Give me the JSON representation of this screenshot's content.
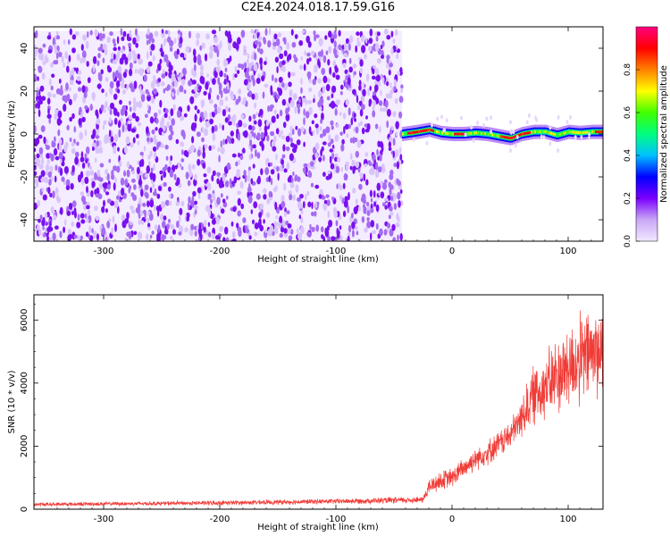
{
  "figure_title": "C2E4.2024.018.17.59.G16",
  "chart_data": [
    {
      "type": "heatmap",
      "title": "C2E4.2024.018.17.59.G16",
      "xlabel": "Height of straight line (km)",
      "ylabel": "Frequency (Hz)",
      "xlim": [
        -360,
        130
      ],
      "ylim": [
        -50,
        50
      ],
      "xticks": [
        -300,
        -200,
        -100,
        0,
        100
      ],
      "yticks": [
        -40,
        -20,
        0,
        20,
        40
      ],
      "colorbar": {
        "label": "Normalized spectral amplitude",
        "range": [
          0,
          1
        ],
        "ticks": [
          "0.0",
          "0.2",
          "0.4",
          "0.6",
          "0.8"
        ],
        "colors": [
          "#f2e8ff",
          "#c9a8f5",
          "#7b00ff",
          "#0000ff",
          "#00c0ff",
          "#00ff80",
          "#40ff00",
          "#ffff00",
          "#ff8000",
          "#ff0000",
          "#ff0080"
        ]
      },
      "regions": [
        {
          "name": "noise",
          "x_range": [
            -360,
            -43
          ],
          "y_range": [
            -50,
            48
          ],
          "amplitude_range": [
            0.0,
            0.15
          ]
        },
        {
          "name": "signal",
          "x_range": [
            -43,
            130
          ],
          "frequency_hz": 0.5,
          "bandwidth_hz": 5,
          "amplitude_range": [
            0.2,
            1.0
          ]
        }
      ],
      "signal_track": {
        "x": [
          -43,
          -30,
          -20,
          -10,
          0,
          10,
          20,
          30,
          40,
          50,
          60,
          70,
          80,
          90,
          100,
          110,
          120,
          130
        ],
        "frequency": [
          0,
          1,
          2,
          0.5,
          0,
          0,
          0.5,
          0,
          -1,
          -2,
          0,
          1,
          1,
          -0.5,
          1,
          0.5,
          1,
          1
        ]
      }
    },
    {
      "type": "line",
      "xlabel": "Height of straight line (km)",
      "ylabel": "SNR (10 * v/v)",
      "xlim": [
        -360,
        130
      ],
      "ylim": [
        0,
        6800
      ],
      "xticks": [
        -300,
        -200,
        -100,
        0,
        100
      ],
      "yticks": [
        0,
        2000,
        4000,
        6000
      ],
      "grid": false,
      "line_color": "#f03c37",
      "series": [
        {
          "x": [
            -360,
            -300,
            -200,
            -100,
            -50,
            -25,
            -20,
            -10,
            0,
            10,
            20,
            30,
            40,
            50,
            55,
            60,
            65,
            70,
            80,
            90,
            100,
            110,
            120,
            130
          ],
          "y": [
            150,
            170,
            200,
            250,
            280,
            300,
            700,
            900,
            1000,
            1300,
            1600,
            1800,
            2050,
            2350,
            2600,
            2900,
            3300,
            3600,
            3900,
            4200,
            4500,
            4700,
            5000,
            5000
          ],
          "noise_amplitude": [
            60,
            60,
            70,
            80,
            100,
            100,
            250,
            300,
            300,
            330,
            350,
            380,
            400,
            450,
            500,
            600,
            800,
            900,
            1000,
            1200,
            1300,
            1400,
            1400,
            1400
          ]
        }
      ]
    }
  ]
}
